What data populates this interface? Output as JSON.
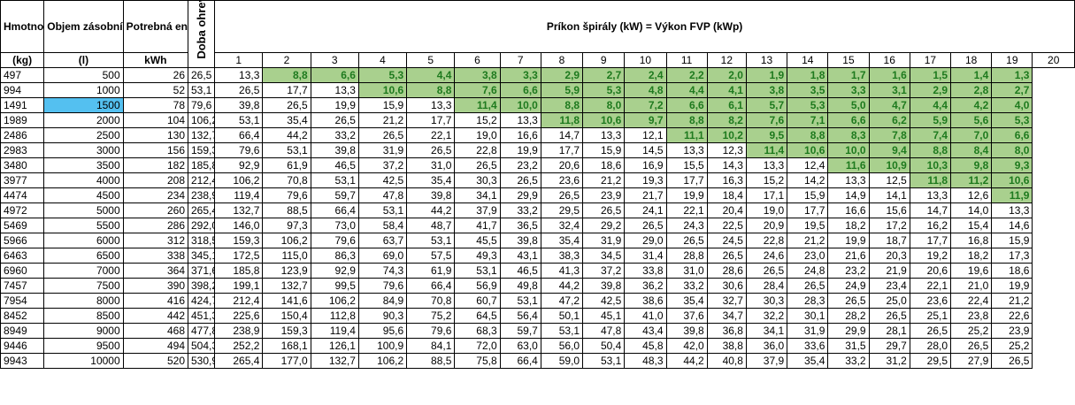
{
  "headers": {
    "mass": "Hmotnosť vody",
    "volume": "Objem zásobníka",
    "energy": "Potrebná energia",
    "rotated": "Doba ohrevu (h)",
    "title": "Príkon špirály (kW) = Výkon FVP (kWp)"
  },
  "units": {
    "mass": "(kg)",
    "volume": "(l)",
    "energy": "kWh"
  },
  "powers": [
    "1",
    "2",
    "3",
    "4",
    "5",
    "6",
    "7",
    "8",
    "9",
    "10",
    "11",
    "12",
    "13",
    "14",
    "15",
    "16",
    "17",
    "18",
    "19",
    "20"
  ],
  "colors": {
    "highlight_fill": "#a9d08e",
    "highlight_text": "#1e7a1e",
    "selected_fill": "#54c0f0"
  },
  "selected_volume": "1500",
  "rows": [
    {
      "mass": "497",
      "volume": "500",
      "energy": "26",
      "values": [
        "26,5",
        "13,3",
        "8,8",
        "6,6",
        "5,3",
        "4,4",
        "3,8",
        "3,3",
        "2,9",
        "2,7",
        "2,4",
        "2,2",
        "2,0",
        "1,9",
        "1,8",
        "1,7",
        "1,6",
        "1,5",
        "1,4",
        "1,3"
      ],
      "hl_from": 3
    },
    {
      "mass": "994",
      "volume": "1000",
      "energy": "52",
      "values": [
        "53,1",
        "26,5",
        "17,7",
        "13,3",
        "10,6",
        "8,8",
        "7,6",
        "6,6",
        "5,9",
        "5,3",
        "4,8",
        "4,4",
        "4,1",
        "3,8",
        "3,5",
        "3,3",
        "3,1",
        "2,9",
        "2,8",
        "2,7"
      ],
      "hl_from": 5
    },
    {
      "mass": "1491",
      "volume": "1500",
      "energy": "78",
      "values": [
        "79,6",
        "39,8",
        "26,5",
        "19,9",
        "15,9",
        "13,3",
        "11,4",
        "10,0",
        "8,8",
        "8,0",
        "7,2",
        "6,6",
        "6,1",
        "5,7",
        "5,3",
        "5,0",
        "4,7",
        "4,4",
        "4,2",
        "4,0"
      ],
      "hl_from": 7
    },
    {
      "mass": "1989",
      "volume": "2000",
      "energy": "104",
      "values": [
        "106,2",
        "53,1",
        "35,4",
        "26,5",
        "21,2",
        "17,7",
        "15,2",
        "13,3",
        "11,8",
        "10,6",
        "9,7",
        "8,8",
        "8,2",
        "7,6",
        "7,1",
        "6,6",
        "6,2",
        "5,9",
        "5,6",
        "5,3"
      ],
      "hl_from": 9
    },
    {
      "mass": "2486",
      "volume": "2500",
      "energy": "130",
      "values": [
        "132,7",
        "66,4",
        "44,2",
        "33,2",
        "26,5",
        "22,1",
        "19,0",
        "16,6",
        "14,7",
        "13,3",
        "12,1",
        "11,1",
        "10,2",
        "9,5",
        "8,8",
        "8,3",
        "7,8",
        "7,4",
        "7,0",
        "6,6"
      ],
      "hl_from": 12
    },
    {
      "mass": "2983",
      "volume": "3000",
      "energy": "156",
      "values": [
        "159,3",
        "79,6",
        "53,1",
        "39,8",
        "31,9",
        "26,5",
        "22,8",
        "19,9",
        "17,7",
        "15,9",
        "14,5",
        "13,3",
        "12,3",
        "11,4",
        "10,6",
        "10,0",
        "9,4",
        "8,8",
        "8,4",
        "8,0"
      ],
      "hl_from": 14
    },
    {
      "mass": "3480",
      "volume": "3500",
      "energy": "182",
      "values": [
        "185,8",
        "92,9",
        "61,9",
        "46,5",
        "37,2",
        "31,0",
        "26,5",
        "23,2",
        "20,6",
        "18,6",
        "16,9",
        "15,5",
        "14,3",
        "13,3",
        "12,4",
        "11,6",
        "10,9",
        "10,3",
        "9,8",
        "9,3"
      ],
      "hl_from": 16
    },
    {
      "mass": "3977",
      "volume": "4000",
      "energy": "208",
      "values": [
        "212,4",
        "106,2",
        "70,8",
        "53,1",
        "42,5",
        "35,4",
        "30,3",
        "26,5",
        "23,6",
        "21,2",
        "19,3",
        "17,7",
        "16,3",
        "15,2",
        "14,2",
        "13,3",
        "12,5",
        "11,8",
        "11,2",
        "10,6"
      ],
      "hl_from": 18
    },
    {
      "mass": "4474",
      "volume": "4500",
      "energy": "234",
      "values": [
        "238,9",
        "119,4",
        "79,6",
        "59,7",
        "47,8",
        "39,8",
        "34,1",
        "29,9",
        "26,5",
        "23,9",
        "21,7",
        "19,9",
        "18,4",
        "17,1",
        "15,9",
        "14,9",
        "14,1",
        "13,3",
        "12,6",
        "11,9"
      ],
      "hl_from": 20
    },
    {
      "mass": "4972",
      "volume": "5000",
      "energy": "260",
      "values": [
        "265,4",
        "132,7",
        "88,5",
        "66,4",
        "53,1",
        "44,2",
        "37,9",
        "33,2",
        "29,5",
        "26,5",
        "24,1",
        "22,1",
        "20,4",
        "19,0",
        "17,7",
        "16,6",
        "15,6",
        "14,7",
        "14,0",
        "13,3"
      ],
      "hl_from": 0
    },
    {
      "mass": "5469",
      "volume": "5500",
      "energy": "286",
      "values": [
        "292,0",
        "146,0",
        "97,3",
        "73,0",
        "58,4",
        "48,7",
        "41,7",
        "36,5",
        "32,4",
        "29,2",
        "26,5",
        "24,3",
        "22,5",
        "20,9",
        "19,5",
        "18,2",
        "17,2",
        "16,2",
        "15,4",
        "14,6"
      ],
      "hl_from": 0
    },
    {
      "mass": "5966",
      "volume": "6000",
      "energy": "312",
      "values": [
        "318,5",
        "159,3",
        "106,2",
        "79,6",
        "63,7",
        "53,1",
        "45,5",
        "39,8",
        "35,4",
        "31,9",
        "29,0",
        "26,5",
        "24,5",
        "22,8",
        "21,2",
        "19,9",
        "18,7",
        "17,7",
        "16,8",
        "15,9"
      ],
      "hl_from": 0
    },
    {
      "mass": "6463",
      "volume": "6500",
      "energy": "338",
      "values": [
        "345,1",
        "172,5",
        "115,0",
        "86,3",
        "69,0",
        "57,5",
        "49,3",
        "43,1",
        "38,3",
        "34,5",
        "31,4",
        "28,8",
        "26,5",
        "24,6",
        "23,0",
        "21,6",
        "20,3",
        "19,2",
        "18,2",
        "17,3"
      ],
      "hl_from": 0
    },
    {
      "mass": "6960",
      "volume": "7000",
      "energy": "364",
      "values": [
        "371,6",
        "185,8",
        "123,9",
        "92,9",
        "74,3",
        "61,9",
        "53,1",
        "46,5",
        "41,3",
        "37,2",
        "33,8",
        "31,0",
        "28,6",
        "26,5",
        "24,8",
        "23,2",
        "21,9",
        "20,6",
        "19,6",
        "18,6"
      ],
      "hl_from": 0
    },
    {
      "mass": "7457",
      "volume": "7500",
      "energy": "390",
      "values": [
        "398,2",
        "199,1",
        "132,7",
        "99,5",
        "79,6",
        "66,4",
        "56,9",
        "49,8",
        "44,2",
        "39,8",
        "36,2",
        "33,2",
        "30,6",
        "28,4",
        "26,5",
        "24,9",
        "23,4",
        "22,1",
        "21,0",
        "19,9"
      ],
      "hl_from": 0
    },
    {
      "mass": "7954",
      "volume": "8000",
      "energy": "416",
      "values": [
        "424,7",
        "212,4",
        "141,6",
        "106,2",
        "84,9",
        "70,8",
        "60,7",
        "53,1",
        "47,2",
        "42,5",
        "38,6",
        "35,4",
        "32,7",
        "30,3",
        "28,3",
        "26,5",
        "25,0",
        "23,6",
        "22,4",
        "21,2"
      ],
      "hl_from": 0
    },
    {
      "mass": "8452",
      "volume": "8500",
      "energy": "442",
      "values": [
        "451,3",
        "225,6",
        "150,4",
        "112,8",
        "90,3",
        "75,2",
        "64,5",
        "56,4",
        "50,1",
        "45,1",
        "41,0",
        "37,6",
        "34,7",
        "32,2",
        "30,1",
        "28,2",
        "26,5",
        "25,1",
        "23,8",
        "22,6"
      ],
      "hl_from": 0
    },
    {
      "mass": "8949",
      "volume": "9000",
      "energy": "468",
      "values": [
        "477,8",
        "238,9",
        "159,3",
        "119,4",
        "95,6",
        "79,6",
        "68,3",
        "59,7",
        "53,1",
        "47,8",
        "43,4",
        "39,8",
        "36,8",
        "34,1",
        "31,9",
        "29,9",
        "28,1",
        "26,5",
        "25,2",
        "23,9"
      ],
      "hl_from": 0
    },
    {
      "mass": "9446",
      "volume": "9500",
      "energy": "494",
      "values": [
        "504,3",
        "252,2",
        "168,1",
        "126,1",
        "100,9",
        "84,1",
        "72,0",
        "63,0",
        "56,0",
        "50,4",
        "45,8",
        "42,0",
        "38,8",
        "36,0",
        "33,6",
        "31,5",
        "29,7",
        "28,0",
        "26,5",
        "25,2"
      ],
      "hl_from": 0
    },
    {
      "mass": "9943",
      "volume": "10000",
      "energy": "520",
      "values": [
        "530,9",
        "265,4",
        "177,0",
        "132,7",
        "106,2",
        "88,5",
        "75,8",
        "66,4",
        "59,0",
        "53,1",
        "48,3",
        "44,2",
        "40,8",
        "37,9",
        "35,4",
        "33,2",
        "31,2",
        "29,5",
        "27,9",
        "26,5"
      ],
      "hl_from": 0
    }
  ]
}
